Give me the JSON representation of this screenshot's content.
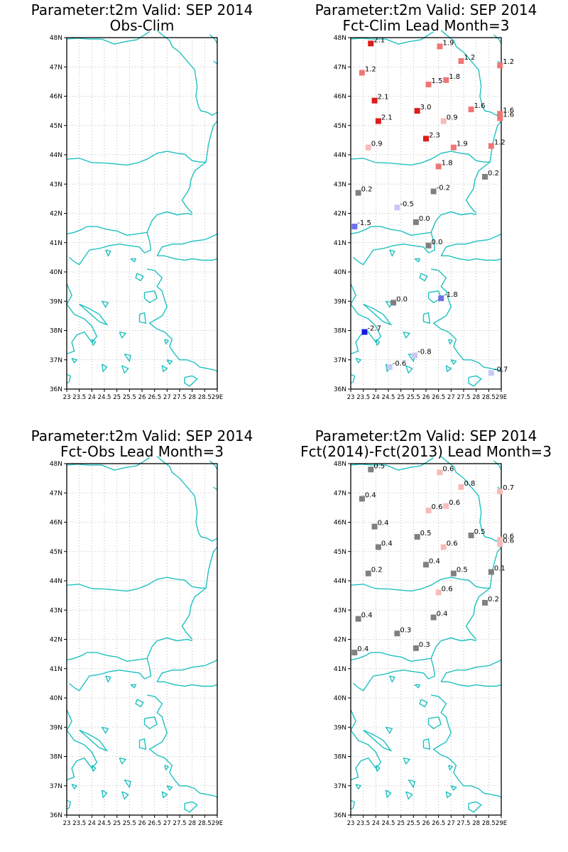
{
  "map": {
    "lon_range": [
      23,
      29
    ],
    "lat_range": [
      36,
      48
    ],
    "lon_ticks": [
      "23",
      "23.5",
      "24",
      "24.5",
      "25",
      "25.5",
      "26",
      "26.5",
      "27",
      "27.5",
      "28",
      "28.5",
      "29E"
    ],
    "lat_ticks": [
      "36N",
      "37N",
      "38N",
      "39N",
      "40N",
      "41N",
      "42N",
      "43N",
      "44N",
      "45N",
      "46N",
      "47N",
      "48N"
    ],
    "grid": "dotted"
  },
  "panels": [
    {
      "id": "obs_clim",
      "title1": "Parameter:t2m Valid: SEP 2014",
      "title2": "Obs-Clim",
      "points": []
    },
    {
      "id": "fct_clim",
      "title1": "Parameter:t2m Valid: SEP 2014",
      "title2": "Fct-Clim Lead Month=3",
      "points": [
        {
          "lon": 23.8,
          "lat": 47.8,
          "value": 2.1,
          "label": "2.1",
          "color": "#dd1c1c"
        },
        {
          "lon": 26.55,
          "lat": 47.7,
          "value": 1.9,
          "label": "1.9",
          "color": "#f07676"
        },
        {
          "lon": 27.4,
          "lat": 47.2,
          "value": 1.2,
          "label": "1.2",
          "color": "#f07676"
        },
        {
          "lon": 28.95,
          "lat": 47.05,
          "value": 1.2,
          "label": "1.2",
          "color": "#f07676"
        },
        {
          "lon": 23.45,
          "lat": 46.8,
          "value": 1.2,
          "label": "1.2",
          "color": "#f07676"
        },
        {
          "lon": 26.1,
          "lat": 46.4,
          "value": 1.5,
          "label": "1.5",
          "color": "#f07676"
        },
        {
          "lon": 26.8,
          "lat": 46.55,
          "value": 1.8,
          "label": "1.8",
          "color": "#f07676"
        },
        {
          "lon": 23.95,
          "lat": 45.85,
          "value": 2.1,
          "label": "2.1",
          "color": "#dd1c1c"
        },
        {
          "lon": 25.65,
          "lat": 45.5,
          "value": 3.0,
          "label": "3.0",
          "color": "#dd1c1c"
        },
        {
          "lon": 27.8,
          "lat": 45.55,
          "value": 1.6,
          "label": "1.6",
          "color": "#f07676"
        },
        {
          "lon": 28.95,
          "lat": 45.4,
          "value": 1.6,
          "label": "1.6",
          "color": "#f07676"
        },
        {
          "lon": 28.95,
          "lat": 45.25,
          "value": 1.6,
          "label": "1.6",
          "color": "#f07676"
        },
        {
          "lon": 24.1,
          "lat": 45.15,
          "value": 2.1,
          "label": "2.1",
          "color": "#dd1c1c"
        },
        {
          "lon": 26.7,
          "lat": 45.15,
          "value": 0.9,
          "label": "0.9",
          "color": "#f9baba"
        },
        {
          "lon": 26.0,
          "lat": 44.55,
          "value": 2.3,
          "label": "2.3",
          "color": "#dd1c1c"
        },
        {
          "lon": 23.7,
          "lat": 44.25,
          "value": 0.9,
          "label": "0.9",
          "color": "#f9baba"
        },
        {
          "lon": 27.1,
          "lat": 44.25,
          "value": 1.9,
          "label": "1.9",
          "color": "#f07676"
        },
        {
          "lon": 28.6,
          "lat": 44.3,
          "value": 1.2,
          "label": "1.2",
          "color": "#f07676"
        },
        {
          "lon": 26.5,
          "lat": 43.6,
          "value": 1.8,
          "label": "1.8",
          "color": "#f07676"
        },
        {
          "lon": 28.35,
          "lat": 43.25,
          "value": 0.2,
          "label": "0.2",
          "color": "#808080"
        },
        {
          "lon": 23.3,
          "lat": 42.7,
          "value": 0.2,
          "label": "0.2",
          "color": "#808080"
        },
        {
          "lon": 26.3,
          "lat": 42.75,
          "value": -0.2,
          "label": "-0.2",
          "color": "#808080"
        },
        {
          "lon": 24.85,
          "lat": 42.2,
          "value": -0.5,
          "label": "-0.5",
          "color": "#c8c8f6"
        },
        {
          "lon": 25.6,
          "lat": 41.7,
          "value": 0.0,
          "label": "0.0",
          "color": "#808080"
        },
        {
          "lon": 23.15,
          "lat": 41.55,
          "value": -1.5,
          "label": "-1.5",
          "color": "#6f6fe8"
        },
        {
          "lon": 26.1,
          "lat": 40.9,
          "value": 0.0,
          "label": "0.0",
          "color": "#808080"
        },
        {
          "lon": 24.7,
          "lat": 38.95,
          "value": 0.0,
          "label": "0.0",
          "color": "#808080"
        },
        {
          "lon": 26.6,
          "lat": 39.1,
          "value": -1.8,
          "label": "-1.8",
          "color": "#6f6fe8"
        },
        {
          "lon": 23.55,
          "lat": 37.95,
          "value": -2.7,
          "label": "-2.7",
          "color": "#1a1adc"
        },
        {
          "lon": 25.55,
          "lat": 37.15,
          "value": -0.8,
          "label": "-0.8",
          "color": "#c8c8f6"
        },
        {
          "lon": 24.55,
          "lat": 36.75,
          "value": -0.6,
          "label": "-0.6",
          "color": "#c8c8f6"
        },
        {
          "lon": 28.6,
          "lat": 36.55,
          "value": -0.7,
          "label": "-0.7",
          "color": "#c8c8f6"
        }
      ]
    },
    {
      "id": "fct_obs",
      "title1": "Parameter:t2m Valid: SEP 2014",
      "title2": "Fct-Obs Lead Month=3",
      "points": []
    },
    {
      "id": "fct_diff",
      "title1": "Parameter:t2m Valid: SEP 2014",
      "title2": "Fct(2014)-Fct(2013) Lead Month=3",
      "points": [
        {
          "lon": 23.8,
          "lat": 47.8,
          "value": 0.5,
          "label": "0.5",
          "color": "#808080"
        },
        {
          "lon": 26.55,
          "lat": 47.7,
          "value": 0.6,
          "label": "0.6",
          "color": "#f9baba"
        },
        {
          "lon": 27.4,
          "lat": 47.2,
          "value": 0.8,
          "label": "0.8",
          "color": "#f9baba"
        },
        {
          "lon": 28.95,
          "lat": 47.05,
          "value": 0.7,
          "label": "0.7",
          "color": "#f9baba"
        },
        {
          "lon": 23.45,
          "lat": 46.8,
          "value": 0.4,
          "label": "0.4",
          "color": "#808080"
        },
        {
          "lon": 26.1,
          "lat": 46.4,
          "value": 0.6,
          "label": "0.6",
          "color": "#f9baba"
        },
        {
          "lon": 26.8,
          "lat": 46.55,
          "value": 0.6,
          "label": "0.6",
          "color": "#f9baba"
        },
        {
          "lon": 23.95,
          "lat": 45.85,
          "value": 0.4,
          "label": "0.4",
          "color": "#808080"
        },
        {
          "lon": 25.65,
          "lat": 45.5,
          "value": 0.5,
          "label": "0.5",
          "color": "#808080"
        },
        {
          "lon": 27.8,
          "lat": 45.55,
          "value": 0.5,
          "label": "0.5",
          "color": "#808080"
        },
        {
          "lon": 28.95,
          "lat": 45.4,
          "value": 0.6,
          "label": "0.6",
          "color": "#f9baba"
        },
        {
          "lon": 28.95,
          "lat": 45.25,
          "value": 0.6,
          "label": "0.6",
          "color": "#f9baba"
        },
        {
          "lon": 24.1,
          "lat": 45.15,
          "value": 0.4,
          "label": "0.4",
          "color": "#808080"
        },
        {
          "lon": 26.7,
          "lat": 45.15,
          "value": 0.6,
          "label": "0.6",
          "color": "#f9baba"
        },
        {
          "lon": 26.0,
          "lat": 44.55,
          "value": 0.4,
          "label": "0.4",
          "color": "#808080"
        },
        {
          "lon": 23.7,
          "lat": 44.25,
          "value": 0.2,
          "label": "0.2",
          "color": "#808080"
        },
        {
          "lon": 27.1,
          "lat": 44.25,
          "value": 0.5,
          "label": "0.5",
          "color": "#808080"
        },
        {
          "lon": 28.6,
          "lat": 44.3,
          "value": 0.1,
          "label": "0.1",
          "color": "#808080"
        },
        {
          "lon": 26.5,
          "lat": 43.6,
          "value": 0.6,
          "label": "0.6",
          "color": "#f9baba"
        },
        {
          "lon": 28.35,
          "lat": 43.25,
          "value": 0.2,
          "label": "0.2",
          "color": "#808080"
        },
        {
          "lon": 23.3,
          "lat": 42.7,
          "value": 0.4,
          "label": "0.4",
          "color": "#808080"
        },
        {
          "lon": 26.3,
          "lat": 42.75,
          "value": 0.4,
          "label": "0.4",
          "color": "#808080"
        },
        {
          "lon": 24.85,
          "lat": 42.2,
          "value": 0.3,
          "label": "0.3",
          "color": "#808080"
        },
        {
          "lon": 25.6,
          "lat": 41.7,
          "value": 0.3,
          "label": "0.3",
          "color": "#808080"
        },
        {
          "lon": 23.15,
          "lat": 41.55,
          "value": 0.4,
          "label": "0.4",
          "color": "#808080"
        }
      ]
    }
  ]
}
